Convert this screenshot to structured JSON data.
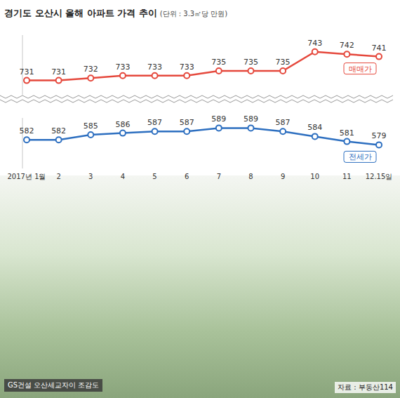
{
  "chart_data": [
    {
      "type": "line",
      "title": "경기도 오산시 올해 아파트 가격 추이",
      "subtitle": "(단위 : 3.3㎡당 만원)",
      "categories": [
        "2017년 1월",
        "2",
        "3",
        "4",
        "5",
        "6",
        "7",
        "8",
        "9",
        "10",
        "11",
        "12.15일"
      ],
      "series": [
        {
          "name": "매매가",
          "color": "#e5483c",
          "values": [
            731,
            731,
            732,
            733,
            733,
            733,
            735,
            735,
            735,
            743,
            742,
            741
          ]
        }
      ],
      "ylim": [
        725,
        750
      ],
      "tick_labels": false,
      "data_labels": true,
      "marker": "circle"
    },
    {
      "type": "line",
      "categories": [
        "2017년 1월",
        "2",
        "3",
        "4",
        "5",
        "6",
        "7",
        "8",
        "9",
        "10",
        "11",
        "12.15일"
      ],
      "series": [
        {
          "name": "전세가",
          "color": "#2d6fc0",
          "values": [
            582,
            582,
            585,
            586,
            587,
            587,
            589,
            589,
            587,
            584,
            581,
            579
          ]
        }
      ],
      "ylim": [
        565,
        595
      ],
      "tick_labels": "x",
      "data_labels": true,
      "marker": "circle",
      "annotations": [
        "GS건설 오산세교자이 조감도",
        "자료 : 부동산114"
      ]
    }
  ]
}
